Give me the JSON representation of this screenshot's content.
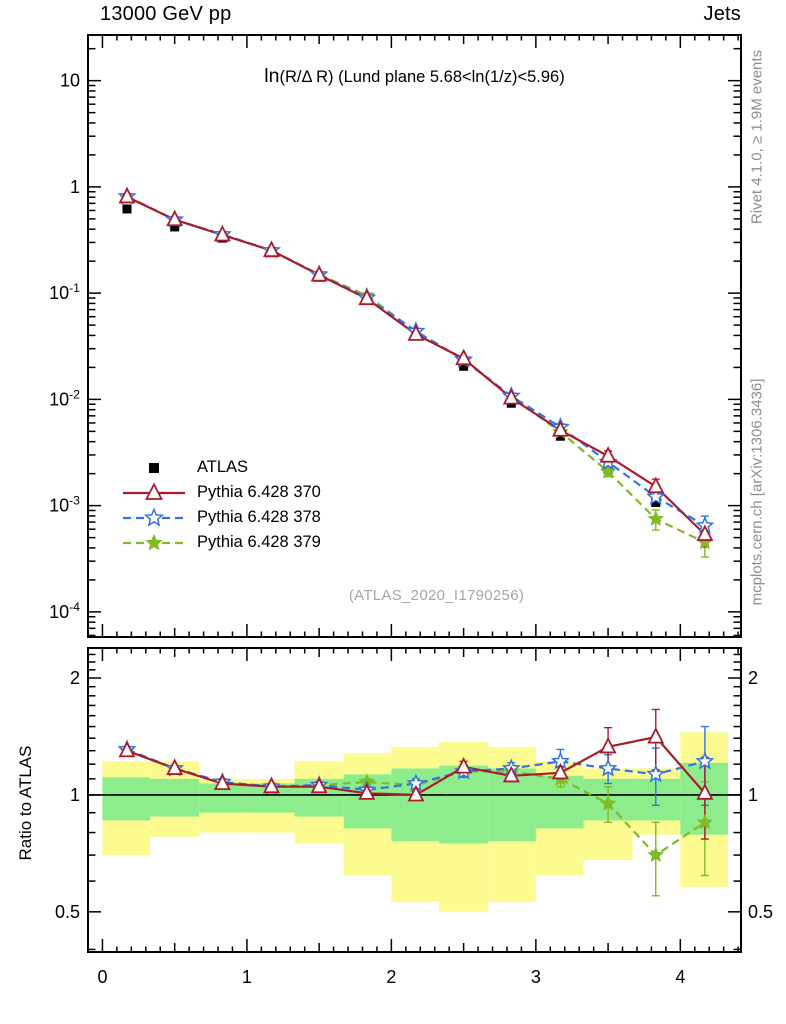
{
  "header": {
    "left": "13000 GeV pp",
    "right": "Jets"
  },
  "side_notes": {
    "rivet": "Rivet 4.1.0, ≥ 1.9M events",
    "mcplots": "mcplots.cern.ch [arXiv:1306.3436]"
  },
  "watermark": "(ATLAS_2020_I1790256)",
  "chart_data": {
    "type": "line",
    "title_lead": "ln",
    "title_rest": "(R/Δ R) (Lund plane 5.68<ln(1/z)<5.96)",
    "ratio_ylabel": "Ratio to ATLAS",
    "x_range": [
      -0.1,
      4.42
    ],
    "main_y_range": [
      5.8e-05,
      26.9
    ],
    "ratio_y_range": [
      0.394,
      2.39
    ],
    "main_yscale": "log",
    "ratio_yscale": "log",
    "x": [
      0.17,
      0.5,
      0.83,
      1.17,
      1.5,
      1.83,
      2.17,
      2.5,
      2.83,
      3.17,
      3.5,
      3.83,
      4.17
    ],
    "bin_edges": [
      0,
      0.33,
      0.67,
      1.0,
      1.33,
      1.67,
      2.0,
      2.33,
      2.67,
      3.0,
      3.33,
      3.67,
      4.0,
      4.33
    ],
    "x_ticks": [
      {
        "value": 0,
        "label": "0"
      },
      {
        "value": 1,
        "label": "1"
      },
      {
        "value": 2,
        "label": "2"
      },
      {
        "value": 3,
        "label": "3"
      },
      {
        "value": 4,
        "label": "4"
      }
    ],
    "main_y_ticks": [
      {
        "value": 10,
        "label": "10"
      },
      {
        "value": 1,
        "label": "1"
      },
      {
        "value": 0.1,
        "label": "10^-1"
      },
      {
        "value": 0.01,
        "label": "10^-2"
      },
      {
        "value": 0.001,
        "label": "10^-3"
      },
      {
        "value": 0.0001,
        "label": "10^-4"
      }
    ],
    "ratio_y_ticks": [
      {
        "value": 0.5,
        "label": "0.5"
      },
      {
        "value": 1,
        "label": "1"
      },
      {
        "value": 2,
        "label": "2"
      }
    ],
    "series": [
      {
        "name": "ATLAS",
        "color": "#000000",
        "marker": "square-filled",
        "line": "none",
        "values": [
          0.62,
          0.42,
          0.33,
          0.24,
          0.141,
          0.088,
          0.041,
          0.0205,
          0.0092,
          0.0045,
          0.0022,
          0.00107,
          0.00053
        ],
        "rel_err": [
          0.02,
          0.02,
          0.02,
          0.02,
          0.02,
          0.02,
          0.02,
          0.02,
          0.02,
          0.03,
          0.04,
          0.06,
          0.1
        ]
      },
      {
        "name": "Pythia 6.428 370",
        "color": "#a81c2e",
        "marker": "triangle-open",
        "line": "solid",
        "ratio": [
          1.3,
          1.17,
          1.07,
          1.05,
          1.05,
          1.01,
          1.0,
          1.18,
          1.12,
          1.14,
          1.33,
          1.41,
          1.01
        ],
        "ratio_err": [
          0.02,
          0.02,
          0.02,
          0.02,
          0.02,
          0.02,
          0.02,
          0.04,
          0.03,
          0.04,
          0.16,
          0.25,
          0.24
        ]
      },
      {
        "name": "Pythia 6.428 378",
        "color": "#3273e8",
        "marker": "star-open",
        "line": "dashed",
        "ratio": [
          1.31,
          1.17,
          1.08,
          1.05,
          1.06,
          1.03,
          1.07,
          1.15,
          1.17,
          1.22,
          1.17,
          1.13,
          1.22
        ],
        "ratio_err": [
          0.02,
          0.02,
          0.02,
          0.02,
          0.02,
          0.02,
          0.03,
          0.04,
          0.04,
          0.09,
          0.1,
          0.19,
          0.28
        ]
      },
      {
        "name": "Pythia 6.428 379",
        "color": "#80ba24",
        "marker": "star-filled",
        "line": "dashed",
        "ratio": [
          1.3,
          1.17,
          1.08,
          1.05,
          1.06,
          1.08,
          1.06,
          1.15,
          1.15,
          1.1,
          0.95,
          0.7,
          0.85
        ],
        "ratio_err": [
          0.02,
          0.02,
          0.02,
          0.02,
          0.02,
          0.02,
          0.03,
          0.04,
          0.04,
          0.05,
          0.1,
          0.15,
          0.23
        ]
      }
    ],
    "bands": {
      "yellow_color": "#fbfb8f",
      "green_color": "#8ded8d",
      "yellow_hi": [
        1.22,
        1.22,
        1.1,
        1.1,
        1.22,
        1.28,
        1.33,
        1.37,
        1.33,
        1.22,
        1.17,
        1.17,
        1.45
      ],
      "yellow_lo": [
        0.7,
        0.78,
        0.8,
        0.8,
        0.75,
        0.62,
        0.53,
        0.5,
        0.53,
        0.62,
        0.68,
        0.79,
        0.58
      ],
      "green_hi": [
        1.11,
        1.1,
        1.07,
        1.07,
        1.1,
        1.13,
        1.17,
        1.19,
        1.17,
        1.12,
        1.1,
        1.1,
        1.21
      ],
      "green_lo": [
        0.86,
        0.88,
        0.9,
        0.9,
        0.88,
        0.82,
        0.76,
        0.75,
        0.76,
        0.82,
        0.86,
        0.86,
        0.79
      ]
    }
  }
}
